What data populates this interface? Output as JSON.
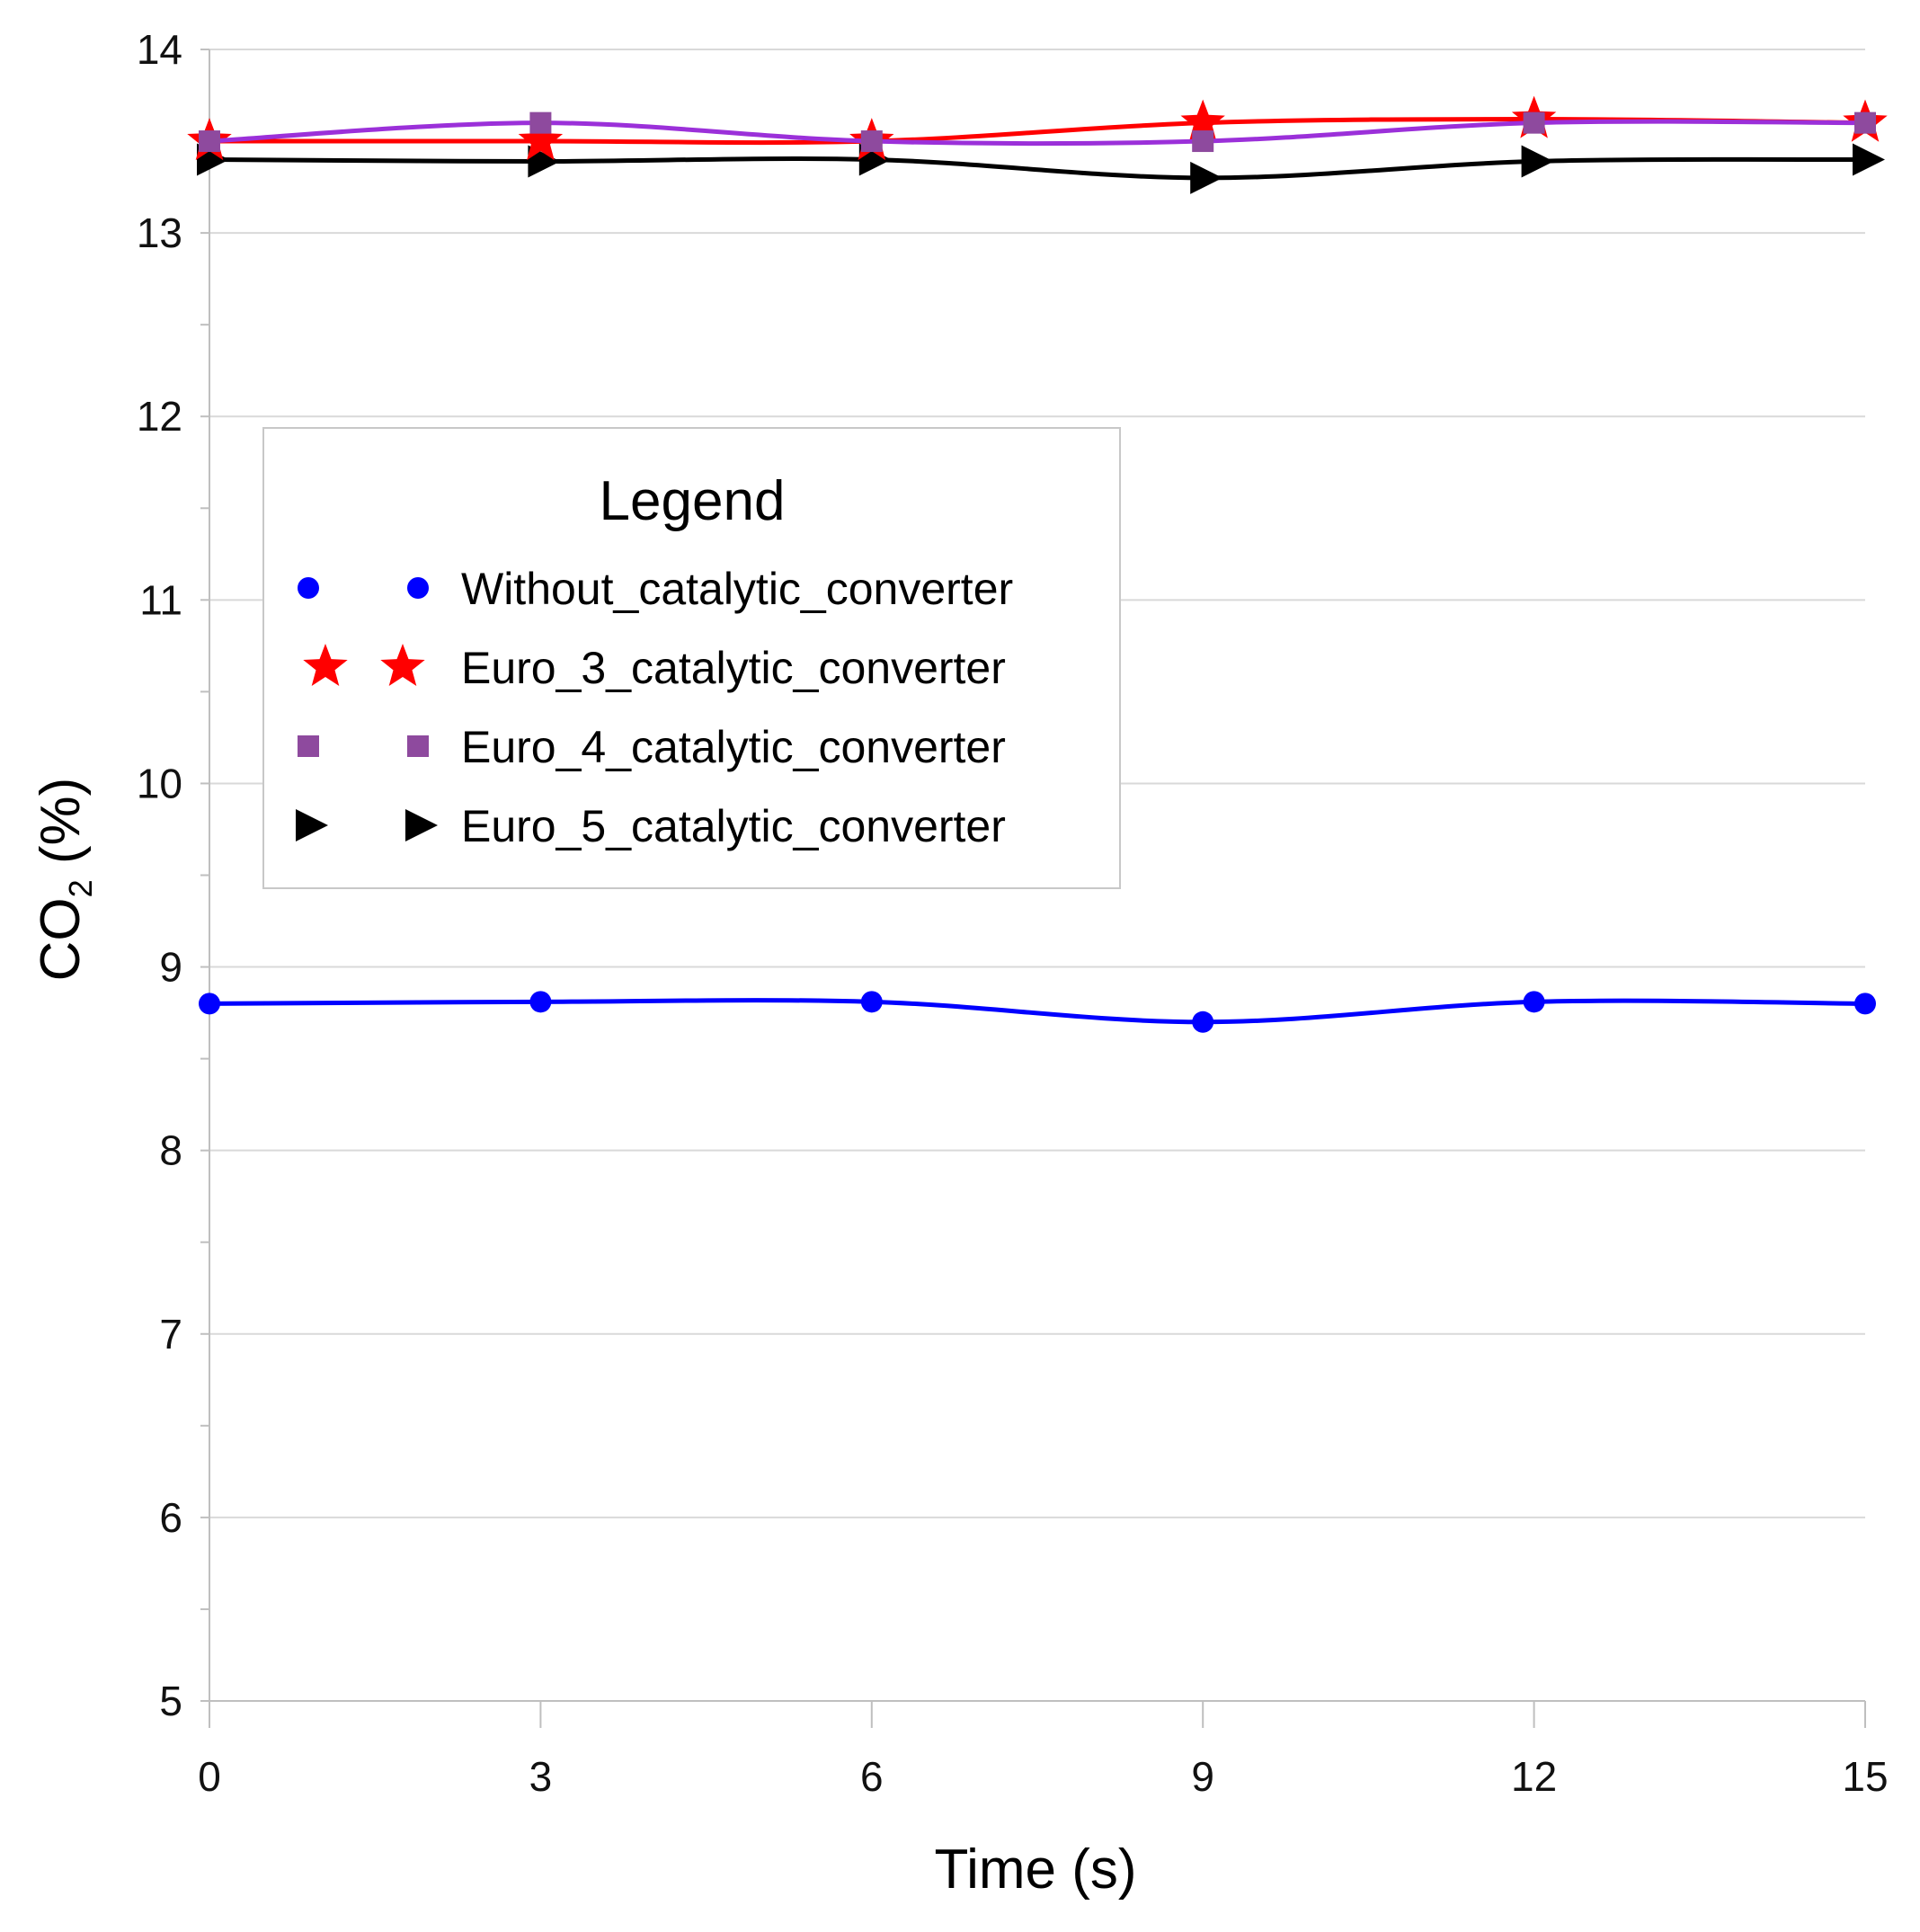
{
  "chart_data": {
    "type": "line",
    "title": "",
    "xlabel": "Time (s)",
    "ylabel_main": "CO",
    "ylabel_sub": "2",
    "ylabel_tail": " (%)",
    "x": [
      0,
      3,
      6,
      9,
      12,
      15
    ],
    "x_ticks": [
      "0",
      "3",
      "6",
      "9",
      "12",
      "15"
    ],
    "y_ticks": [
      "5",
      "6",
      "7",
      "8",
      "9",
      "10",
      "11",
      "12",
      "13",
      "14"
    ],
    "xlim": [
      0,
      15
    ],
    "ylim": [
      5,
      14
    ],
    "grid": true,
    "legend": {
      "title": "Legend",
      "position": "center-left"
    },
    "series": [
      {
        "name": "Without_catalytic_converter",
        "values": [
          8.8,
          8.81,
          8.81,
          8.7,
          8.81,
          8.8
        ],
        "color": "#0000ff",
        "marker": "circle"
      },
      {
        "name": "Euro_3_catalytic_converter",
        "values": [
          13.5,
          13.5,
          13.5,
          13.6,
          13.62,
          13.6
        ],
        "color": "#ff0000",
        "marker": "star"
      },
      {
        "name": "Euro_4_catalytic_converter",
        "values": [
          13.5,
          13.6,
          13.5,
          13.5,
          13.6,
          13.6
        ],
        "color": "#9b30d9",
        "marker_color": "#8e4a9e",
        "marker": "square"
      },
      {
        "name": "Euro_5_catalytic_converter",
        "values": [
          13.4,
          13.39,
          13.4,
          13.3,
          13.39,
          13.4
        ],
        "color": "#000000",
        "marker": "triangle-right"
      }
    ]
  }
}
